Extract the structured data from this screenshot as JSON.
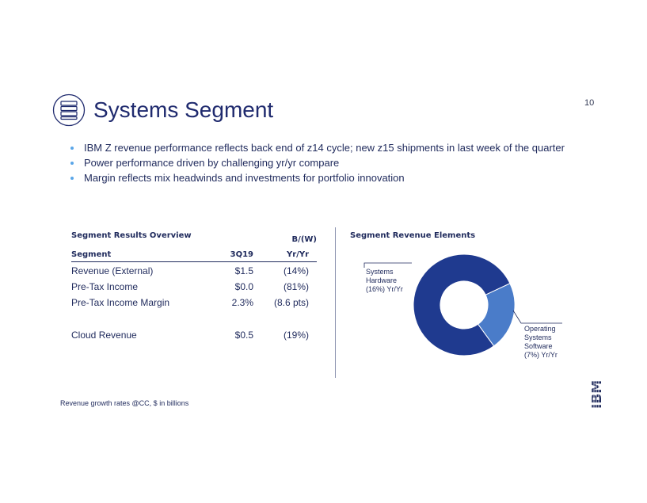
{
  "header": {
    "title": "Systems Segment",
    "page_number": "10",
    "icon": "server-icon"
  },
  "bullets": [
    "IBM Z revenue performance reflects back end of z14 cycle; new z15 shipments in last week of the quarter",
    "Power performance driven by challenging yr/yr compare",
    "Margin reflects mix headwinds and investments for portfolio innovation"
  ],
  "results_table": {
    "title": "Segment Results Overview",
    "col_segment": "Segment",
    "col_quarter": "3Q19",
    "col_change_top": "B/(W)",
    "col_change_bottom": "Yr/Yr",
    "rows": [
      {
        "label": "Revenue (External)",
        "value": "$1.5",
        "change": "(14%)"
      },
      {
        "label": "Pre-Tax Income",
        "value": "$0.0",
        "change": "(81%)"
      },
      {
        "label": "Pre-Tax Income Margin",
        "value": "2.3%",
        "change": "(8.6 pts)"
      },
      {
        "label": "Cloud Revenue",
        "value": "$0.5",
        "change": "(19%)"
      }
    ]
  },
  "chart_data": {
    "type": "pie",
    "title": "Segment Revenue Elements",
    "donut": true,
    "slices": [
      {
        "label_lines": [
          "Systems",
          "Hardware",
          "(16%) Yr/Yr"
        ],
        "share": 0.78,
        "color": "#1f3a8f"
      },
      {
        "label_lines": [
          "Operating",
          "Systems",
          "Software",
          "(7%) Yr/Yr"
        ],
        "share": 0.22,
        "color": "#4a7cc9"
      }
    ]
  },
  "footnote": "Revenue growth rates @CC, $ in billions",
  "logo": {
    "text": "IBM",
    "icon": "ibm-logo-icon"
  }
}
